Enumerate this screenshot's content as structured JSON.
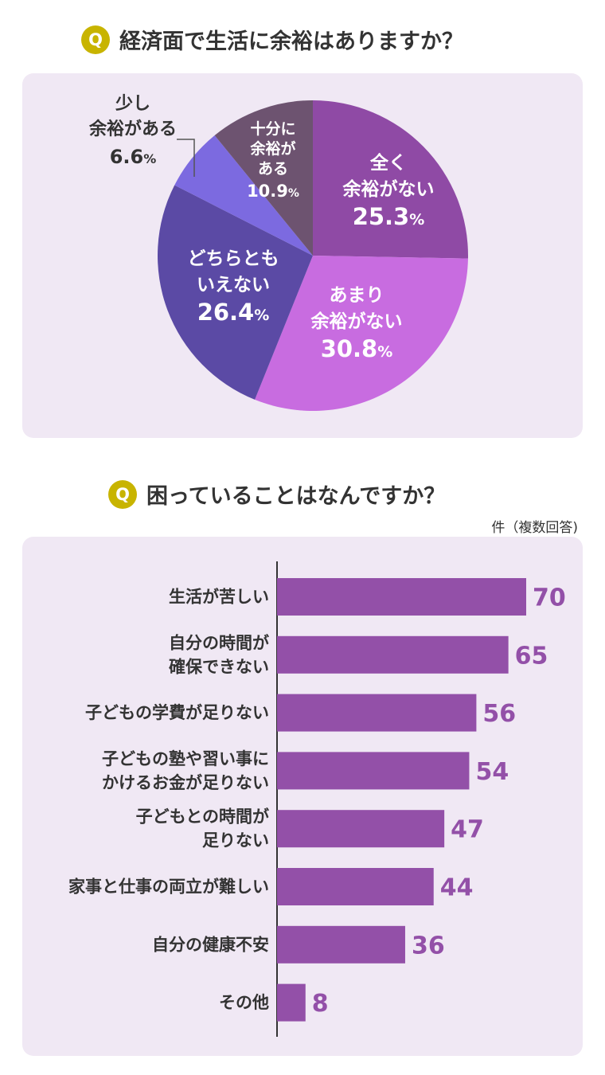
{
  "colors": {
    "badge": "#c8b400",
    "card_bg": "#f0e8f4",
    "bar": "#9350a8",
    "value_text": "#9350a8",
    "axis": "#333333"
  },
  "section1": {
    "badge": "Q",
    "question": "経済面で生活に余裕はありますか？"
  },
  "section2": {
    "badge": "Q",
    "question": "困っていることはなんですか？",
    "unit_note": "件（複数回答)"
  },
  "chart_data": [
    {
      "type": "pie",
      "title": "経済面で生活に余裕はありますか？",
      "slices": [
        {
          "label_lines": [
            "全く",
            "余裕がない"
          ],
          "value": 25.3,
          "display": "25.3",
          "pct": "%",
          "color": "#8f4aa5"
        },
        {
          "label_lines": [
            "あまり",
            "余裕がない"
          ],
          "value": 30.8,
          "display": "30.8",
          "pct": "%",
          "color": "#c86ce0"
        },
        {
          "label_lines": [
            "どちらとも",
            "いえない"
          ],
          "value": 26.4,
          "display": "26.4",
          "pct": "%",
          "color": "#5b4aa5"
        },
        {
          "label_lines": [
            "少し",
            "余裕がある"
          ],
          "value": 6.6,
          "display": "6.6",
          "pct": "%",
          "color": "#7c6ae0"
        },
        {
          "label_lines": [
            "十分に",
            "余裕が",
            "ある"
          ],
          "value": 10.9,
          "display": "10.9",
          "pct": "%",
          "color": "#6d5370"
        }
      ]
    },
    {
      "type": "bar",
      "orientation": "horizontal",
      "title": "困っていることはなんですか？",
      "unit": "件（複数回答)",
      "categories": [
        [
          "生活が苦しい"
        ],
        [
          "自分の時間が",
          "確保できない"
        ],
        [
          "子どもの学費が足りない"
        ],
        [
          "子どもの塾や習い事に",
          "かけるお金が足りない"
        ],
        [
          "子どもとの時間が",
          "足りない"
        ],
        [
          "家事と仕事の両立が難しい"
        ],
        [
          "自分の健康不安"
        ],
        [
          "その他"
        ]
      ],
      "values": [
        70,
        65,
        56,
        54,
        47,
        44,
        36,
        8
      ],
      "xlim": [
        0,
        70
      ]
    }
  ]
}
